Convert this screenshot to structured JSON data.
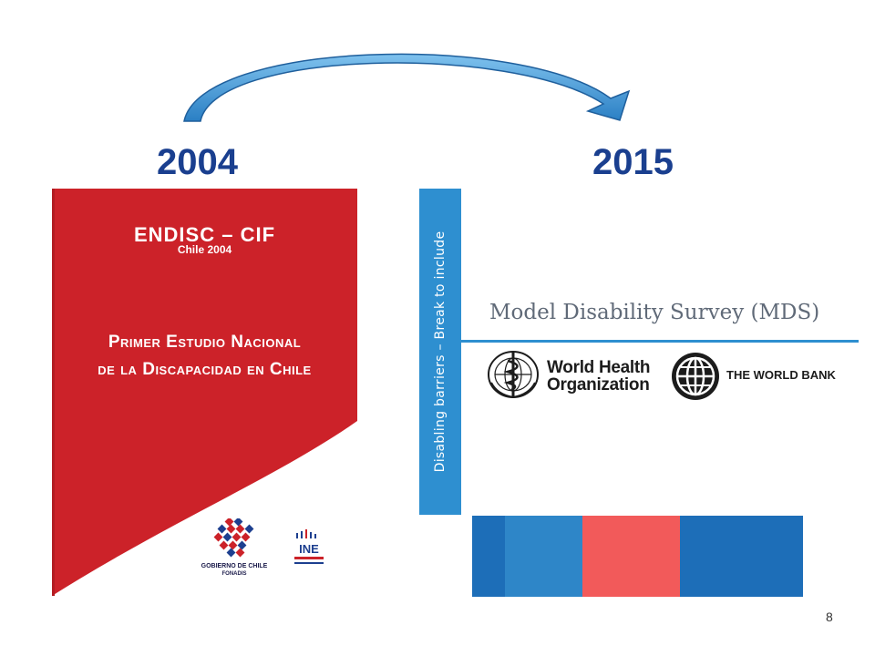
{
  "timeline": {
    "year_start": "2004",
    "year_end": "2015",
    "arrow_color": "#2e8fd0"
  },
  "cover": {
    "title": "ENDISC – CIF",
    "subtitle": "Chile 2004",
    "heading_line1": "Primer Estudio Nacional",
    "heading_line2": "de la  Discapacidad en Chile",
    "gov_line1": "GOBIERNO DE CHILE",
    "gov_line2": "FONADIS",
    "ine_label": "INE",
    "background_color": "#cc2229"
  },
  "vertical_banner": {
    "text": "Disabling barriers – Break to include",
    "color": "#2e8fd0"
  },
  "mds": {
    "title": "Model Disability Survey (MDS)",
    "who_line1": "World Health",
    "who_line2": "Organization",
    "wb_label": "THE WORLD BANK",
    "who_icon": "who-emblem-icon",
    "wb_icon": "world-bank-globe-icon"
  },
  "flag_colors": [
    "#1d6eb8",
    "#2e86c8",
    "#f25a5a",
    "#1d6eb8"
  ],
  "page_number": "8"
}
